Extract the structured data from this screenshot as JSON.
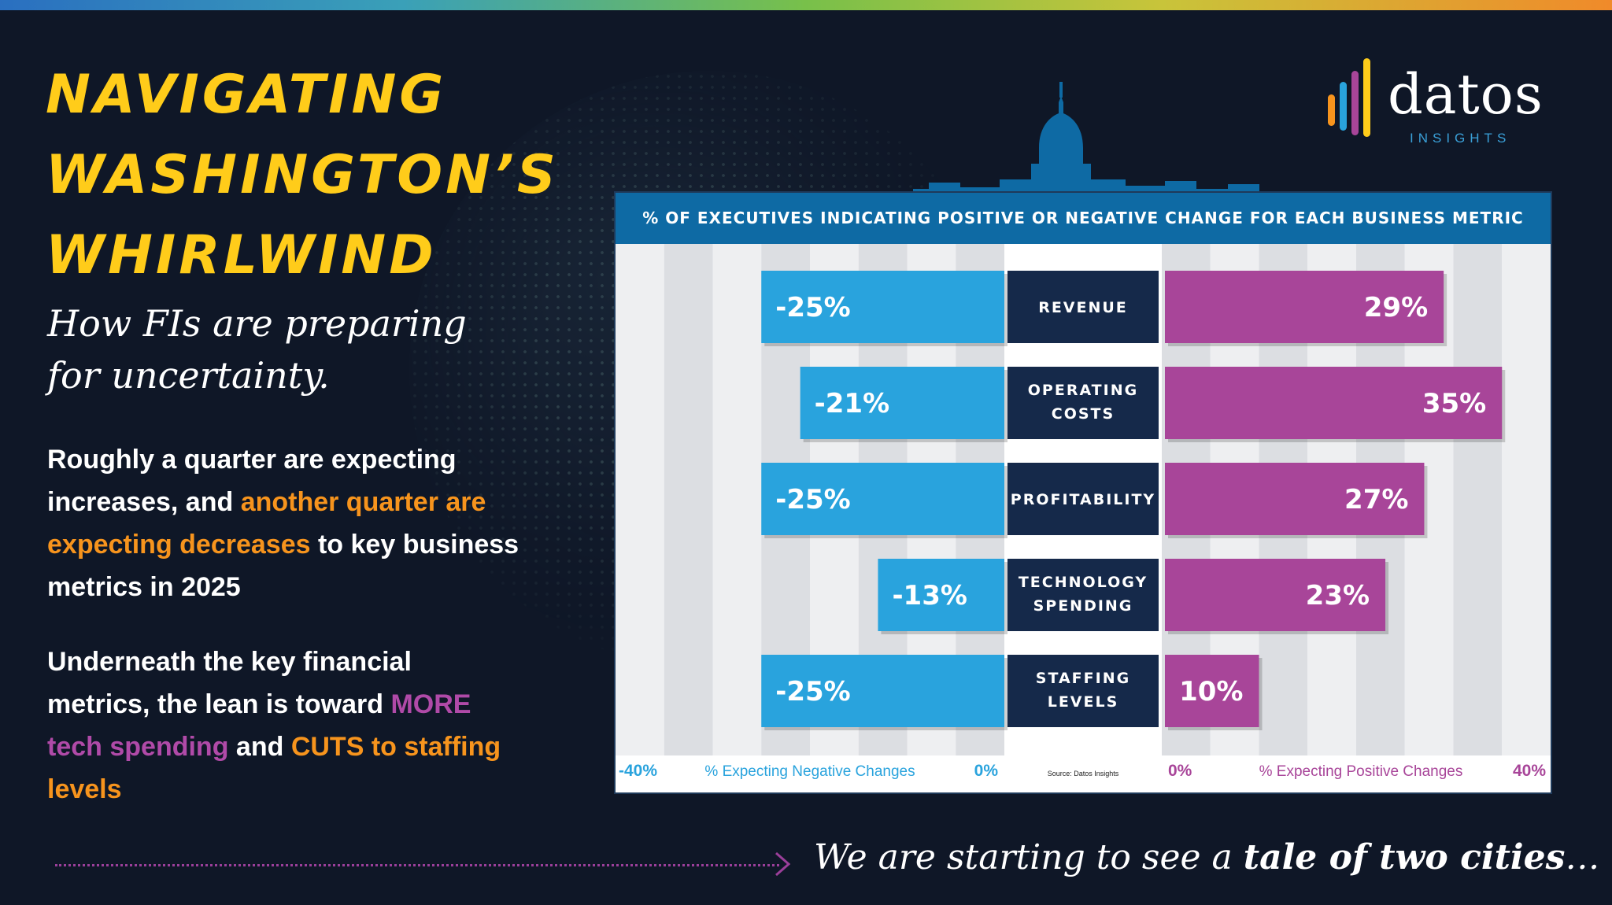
{
  "page": {
    "title_lines": [
      "NAVIGATING",
      "WASHINGTON’S",
      "WHIRLWIND"
    ],
    "subtitle_lines": [
      "How FIs are preparing",
      "for uncertainty."
    ],
    "para1": {
      "a": "Roughly a quarter are expecting increases, and ",
      "b": "another quarter are expecting decreases",
      "c": " to key business metrics in 2025"
    },
    "para2": {
      "a": "Underneath the key financial metrics, the lean is toward ",
      "b": "MORE tech spending",
      "c": " and ",
      "d": "CUTS to staffing levels"
    },
    "tagline": {
      "a": "We are starting to see a ",
      "b": "tale of two cities",
      "c": "…"
    },
    "logo": {
      "word": "datos",
      "sub": "INSIGHTS"
    },
    "colors": {
      "title": "#ffcc1a",
      "negative": "#29a3dd",
      "positive": "#a84599",
      "label_box": "#15294a",
      "accent_orange": "#f7941d",
      "accent_purple": "#b04aa8"
    }
  },
  "chart_data": {
    "type": "bar",
    "title": "% OF EXECUTIVES INDICATING POSITIVE OR NEGATIVE CHANGE FOR EACH BUSINESS METRIC",
    "categories": [
      "REVENUE",
      "OPERATING COSTS",
      "PROFITABILITY",
      "TECHNOLOGY SPENDING",
      "STAFFING LEVELS"
    ],
    "series": [
      {
        "name": "% Expecting Negative Changes",
        "values": [
          -25,
          -21,
          -25,
          -13,
          -25
        ],
        "labels": [
          "-25%",
          "-21%",
          "-25%",
          "-13%",
          "-25%"
        ]
      },
      {
        "name": "% Expecting Positive Changes",
        "values": [
          29,
          35,
          27,
          23,
          10
        ],
        "labels": [
          "29%",
          "35%",
          "27%",
          "23%",
          "10%"
        ]
      }
    ],
    "negative_axis": {
      "range": [
        -40,
        0
      ],
      "tick_labels": [
        "-40%",
        "0%"
      ],
      "label": "% Expecting Negative Changes"
    },
    "positive_axis": {
      "range": [
        0,
        40
      ],
      "tick_labels": [
        "0%",
        "40%"
      ],
      "label": "% Expecting Positive Changes"
    },
    "source": "Source: Datos Insights",
    "grid": true
  }
}
